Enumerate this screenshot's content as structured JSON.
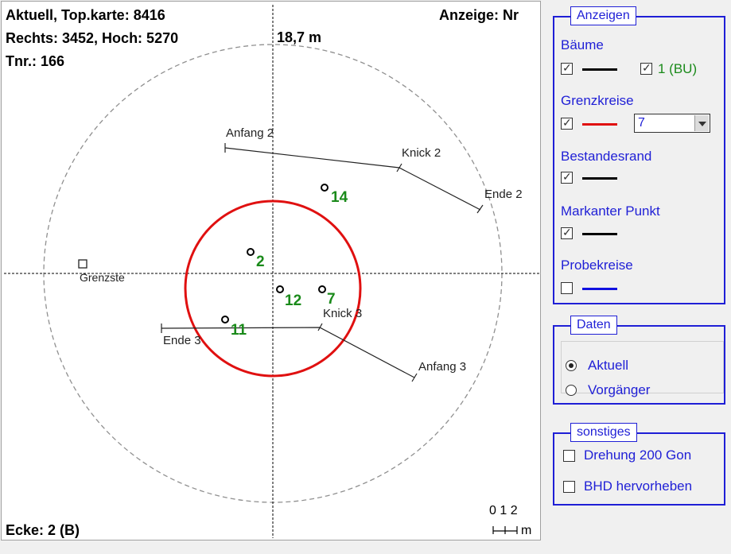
{
  "plot": {
    "info_line1": "Aktuell, Top.karte: 8416",
    "info_line2": "Rechts: 3452, Hoch: 5270",
    "info_line3": "Tnr.: 166",
    "display_label": "Anzeige: Nr",
    "radius_label": "18,7 m",
    "corner_label": "Ecke: 2 (B)",
    "scale_numbers": "0 1 2",
    "scale_unit": "m",
    "trees": [
      {
        "number": "14"
      },
      {
        "number": "2"
      },
      {
        "number": "12"
      },
      {
        "number": "7"
      },
      {
        "number": "11"
      }
    ],
    "edge_labels": {
      "anfang2": "Anfang 2",
      "knick2": "Knick 2",
      "ende2": "Ende 2",
      "knick3": "Knick 3",
      "ende3": "Ende 3",
      "anfang3": "Anfang 3",
      "grenzstein": "Grenzste"
    },
    "colors": {
      "boundary_circle": "#e01010",
      "tree_label": "#1a8a1a",
      "outer_circle": "#909090"
    }
  },
  "panel_anzeigen": {
    "title": "Anzeigen",
    "baeume_label": "Bäume",
    "baeume_checked": true,
    "bu_label": "1 (BU)",
    "bu_checked": true,
    "grenzkreise_label": "Grenzkreise",
    "grenzkreise_checked": true,
    "grenzkreise_select": "7",
    "bestandesrand_label": "Bestandesrand",
    "bestandesrand_checked": true,
    "markanter_punkt_label": "Markanter Punkt",
    "markanter_punkt_checked": true,
    "probekreise_label": "Probekreise",
    "probekreise_checked": false
  },
  "panel_daten": {
    "title": "Daten",
    "option_aktuell": "Aktuell",
    "option_vorgaenger": "Vorgänger",
    "selected": "Aktuell"
  },
  "panel_sonstiges": {
    "title": "sonstiges",
    "drehung_label": "Drehung 200 Gon",
    "drehung_checked": false,
    "bhd_label": "BHD hervorheben",
    "bhd_checked": false
  }
}
